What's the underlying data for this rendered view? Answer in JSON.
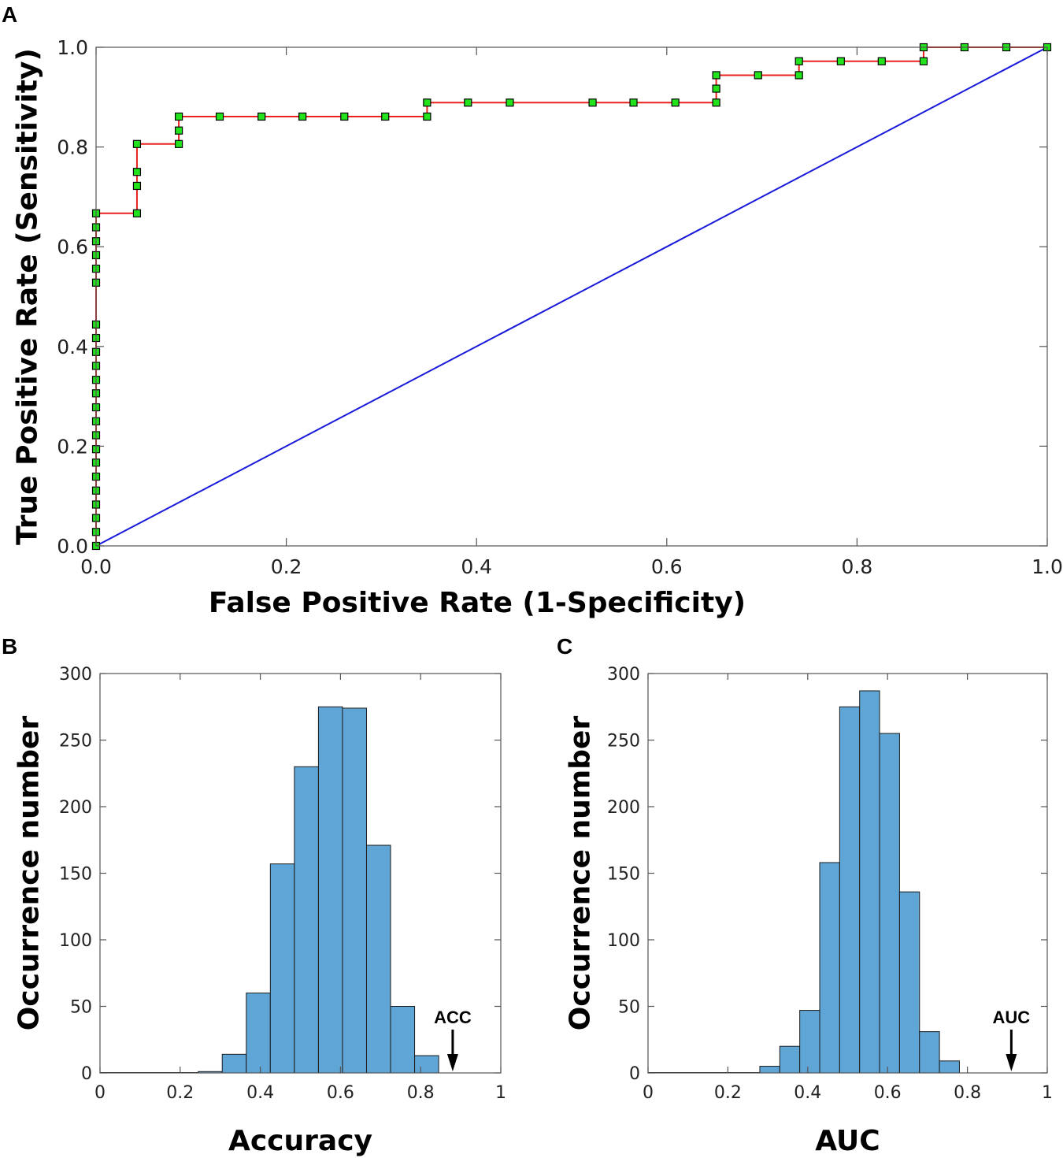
{
  "chart_data": [
    {
      "panel": "A",
      "type": "line",
      "xlabel": "False Positive Rate (1-Specificity)",
      "ylabel": "True Positive Rate (Sensitivity)",
      "xlim": [
        0,
        1
      ],
      "ylim": [
        0,
        1
      ],
      "xticks": [
        "0.0",
        "0.2",
        "0.4",
        "0.6",
        "0.8",
        "1.0"
      ],
      "yticks": [
        "0.0",
        "0.2",
        "0.4",
        "0.6",
        "0.8",
        "1.0"
      ],
      "series": [
        {
          "name": "ROC",
          "color": "#e8211f",
          "marker_color": "#22e31c",
          "points": [
            [
              0,
              0
            ],
            [
              0,
              0.028
            ],
            [
              0,
              0.056
            ],
            [
              0,
              0.083
            ],
            [
              0,
              0.111
            ],
            [
              0,
              0.139
            ],
            [
              0,
              0.167
            ],
            [
              0,
              0.194
            ],
            [
              0,
              0.222
            ],
            [
              0,
              0.25
            ],
            [
              0,
              0.278
            ],
            [
              0,
              0.306
            ],
            [
              0,
              0.333
            ],
            [
              0,
              0.361
            ],
            [
              0,
              0.389
            ],
            [
              0,
              0.417
            ],
            [
              0,
              0.444
            ],
            [
              0,
              0.528
            ],
            [
              0,
              0.556
            ],
            [
              0,
              0.583
            ],
            [
              0,
              0.611
            ],
            [
              0,
              0.639
            ],
            [
              0,
              0.667
            ],
            [
              0.043,
              0.667
            ],
            [
              0.043,
              0.722
            ],
            [
              0.043,
              0.75
            ],
            [
              0.043,
              0.806
            ],
            [
              0.087,
              0.806
            ],
            [
              0.087,
              0.833
            ],
            [
              0.087,
              0.861
            ],
            [
              0.13,
              0.861
            ],
            [
              0.174,
              0.861
            ],
            [
              0.217,
              0.861
            ],
            [
              0.261,
              0.861
            ],
            [
              0.304,
              0.861
            ],
            [
              0.348,
              0.861
            ],
            [
              0.348,
              0.889
            ],
            [
              0.391,
              0.889
            ],
            [
              0.435,
              0.889
            ],
            [
              0.522,
              0.889
            ],
            [
              0.565,
              0.889
            ],
            [
              0.609,
              0.889
            ],
            [
              0.652,
              0.889
            ],
            [
              0.652,
              0.917
            ],
            [
              0.652,
              0.944
            ],
            [
              0.696,
              0.944
            ],
            [
              0.739,
              0.944
            ],
            [
              0.739,
              0.972
            ],
            [
              0.783,
              0.972
            ],
            [
              0.826,
              0.972
            ],
            [
              0.87,
              0.972
            ],
            [
              0.87,
              1.0
            ],
            [
              0.913,
              1.0
            ],
            [
              0.957,
              1.0
            ],
            [
              1.0,
              1.0
            ]
          ]
        },
        {
          "name": "Chance",
          "color": "#1a1adb",
          "points": [
            [
              0,
              0
            ],
            [
              1,
              1
            ]
          ]
        }
      ]
    },
    {
      "panel": "B",
      "type": "bar",
      "xlabel": "Accuracy",
      "ylabel": "Occurrence number",
      "xlim": [
        0,
        1
      ],
      "ylim": [
        0,
        300
      ],
      "xticks": [
        "0",
        "0.2",
        "0.4",
        "0.6",
        "0.8",
        "1"
      ],
      "yticks": [
        "0",
        "50",
        "100",
        "150",
        "200",
        "250",
        "300"
      ],
      "bar_color": "#5fa6d6",
      "bin_edges": [
        0.245,
        0.305,
        0.365,
        0.425,
        0.485,
        0.545,
        0.605,
        0.665,
        0.725,
        0.785,
        0.845
      ],
      "values": [
        1,
        14,
        60,
        157,
        230,
        275,
        274,
        171,
        50,
        13
      ],
      "annotation": {
        "text": "ACC",
        "x": 0.88
      }
    },
    {
      "panel": "C",
      "type": "bar",
      "xlabel": "AUC",
      "ylabel": "Occurrence number",
      "xlim": [
        0,
        1
      ],
      "ylim": [
        0,
        300
      ],
      "xticks": [
        "0",
        "0.2",
        "0.4",
        "0.6",
        "0.8",
        "1"
      ],
      "yticks": [
        "0",
        "50",
        "100",
        "150",
        "200",
        "250",
        "300"
      ],
      "bar_color": "#5fa6d6",
      "bin_edges": [
        0.28,
        0.33,
        0.38,
        0.43,
        0.48,
        0.53,
        0.58,
        0.63,
        0.68,
        0.73,
        0.78
      ],
      "values": [
        5,
        20,
        47,
        158,
        275,
        287,
        255,
        136,
        31,
        9
      ],
      "annotation": {
        "text": "AUC",
        "x": 0.91
      }
    }
  ]
}
